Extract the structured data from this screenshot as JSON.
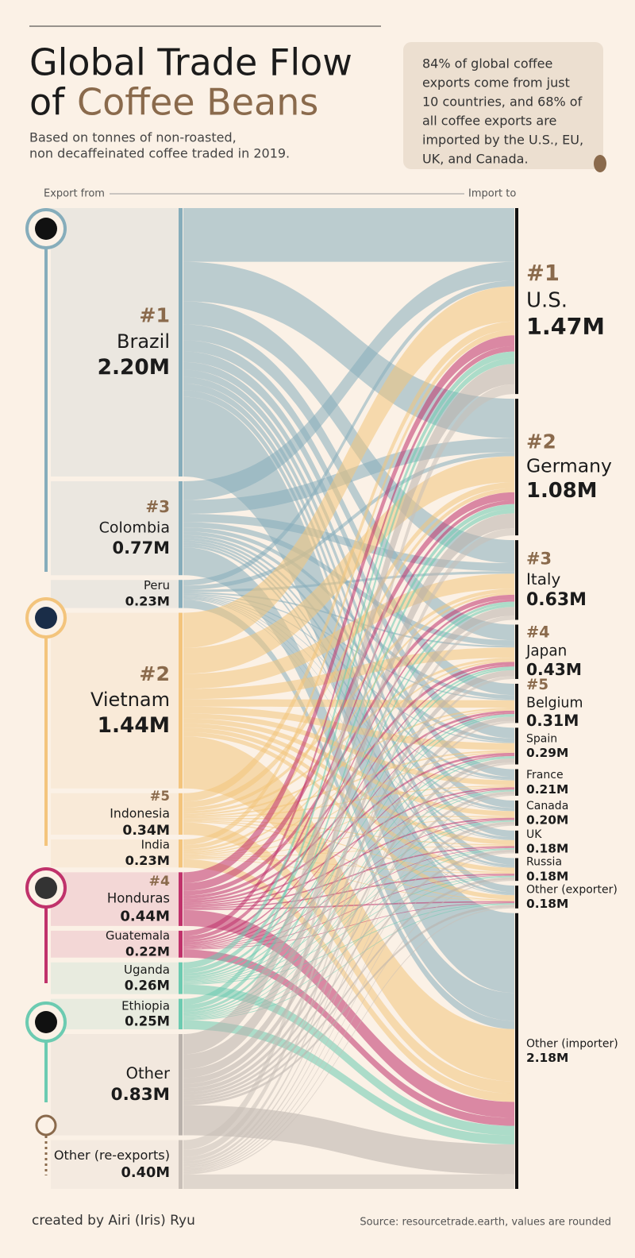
{
  "chart_data": {
    "type": "sankey",
    "title": [
      "Global Trade Flow",
      "of",
      "Coffee Beans"
    ],
    "subtitle": [
      "Based on tonnes of non-roasted,",
      "non decaffeinated coffee traded in 2019."
    ],
    "note": [
      "84% of global coffee",
      "exports come from just",
      "10 countries, and 68% of",
      "all coffee exports are",
      "imported by the U.S., EU,",
      "UK, and Canada."
    ],
    "source_axis_label": "Export from",
    "target_axis_label": "Import to",
    "sources": [
      {
        "rank": "#1",
        "name": "Brazil",
        "value": 2.2,
        "value_label": "2.20M",
        "color": "#86adbb"
      },
      {
        "rank": "#3",
        "name": "Colombia",
        "value": 0.77,
        "value_label": "0.77M",
        "color": "#86adbb"
      },
      {
        "name": "Peru",
        "value": 0.23,
        "value_label": "0.23M",
        "color": "#86adbb"
      },
      {
        "rank": "#2",
        "name": "Vietnam",
        "value": 1.44,
        "value_label": "1.44M",
        "color": "#f3c47c"
      },
      {
        "rank": "#5",
        "name": "Indonesia",
        "value": 0.34,
        "value_label": "0.34M",
        "color": "#f3c47c"
      },
      {
        "name": "India",
        "value": 0.23,
        "value_label": "0.23M",
        "color": "#f3c47c"
      },
      {
        "rank": "#4",
        "name": "Honduras",
        "value": 0.44,
        "value_label": "0.44M",
        "color": "#c0326b"
      },
      {
        "name": "Guatemala",
        "value": 0.22,
        "value_label": "0.22M",
        "color": "#c0326b"
      },
      {
        "name": "Uganda",
        "value": 0.26,
        "value_label": "0.26M",
        "color": "#6ccbb1"
      },
      {
        "name": "Ethiopia",
        "value": 0.25,
        "value_label": "0.25M",
        "color": "#6ccbb1"
      },
      {
        "name": "Other",
        "value": 0.83,
        "value_label": "0.83M",
        "color": "#b9b1ab"
      },
      {
        "name": "Other (re-exports)",
        "value": 0.4,
        "value_label": "0.40M",
        "color": "#c9c0b8"
      }
    ],
    "targets": [
      {
        "rank": "#1",
        "name": "U.S.",
        "value": 1.47,
        "value_label": "1.47M"
      },
      {
        "rank": "#2",
        "name": "Germany",
        "value": 1.08,
        "value_label": "1.08M"
      },
      {
        "rank": "#3",
        "name": "Italy",
        "value": 0.63,
        "value_label": "0.63M"
      },
      {
        "rank": "#4",
        "name": "Japan",
        "value": 0.43,
        "value_label": "0.43M"
      },
      {
        "rank": "#5",
        "name": "Belgium",
        "value": 0.31,
        "value_label": "0.31M"
      },
      {
        "name": "Spain",
        "value": 0.29,
        "value_label": "0.29M"
      },
      {
        "name": "France",
        "value": 0.21,
        "value_label": "0.21M"
      },
      {
        "name": "Canada",
        "value": 0.2,
        "value_label": "0.20M"
      },
      {
        "name": "UK",
        "value": 0.18,
        "value_label": "0.18M"
      },
      {
        "name": "Russia",
        "value": 0.18,
        "value_label": "0.18M"
      },
      {
        "name": "Other (exporter)",
        "value": 0.18,
        "value_label": "0.18M"
      },
      {
        "name": "Other (importer)",
        "value": 2.18,
        "value_label": "2.18M"
      }
    ],
    "credit": "created by Airi (Iris) Ryu",
    "source": "Source: resourcetrade.earth, values are rounded"
  }
}
